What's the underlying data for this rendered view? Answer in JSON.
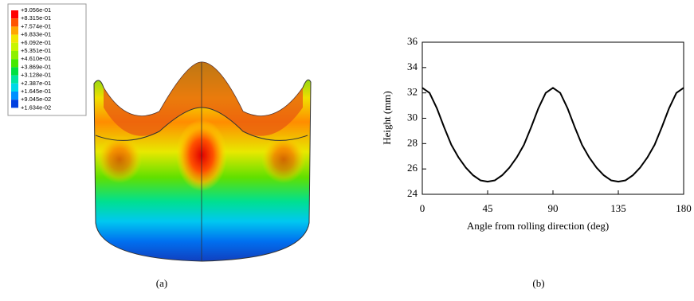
{
  "chart_data": [
    {
      "type": "contour",
      "caption": "(a)",
      "levels": [
        {
          "value": 0.9056,
          "label": "+9.056e-01"
        },
        {
          "value": 0.8315,
          "label": "+8.315e-01"
        },
        {
          "value": 0.7574,
          "label": "+7.574e-01"
        },
        {
          "value": 0.6833,
          "label": "+6.833e-01"
        },
        {
          "value": 0.6092,
          "label": "+6.092e-01"
        },
        {
          "value": 0.5351,
          "label": "+5.351e-01"
        },
        {
          "value": 0.461,
          "label": "+4.610e-01"
        },
        {
          "value": 0.3869,
          "label": "+3.869e-01"
        },
        {
          "value": 0.3128,
          "label": "+3.128e-01"
        },
        {
          "value": 0.2387,
          "label": "+2.387e-01"
        },
        {
          "value": 0.1645,
          "label": "+1.645e-01"
        },
        {
          "value": 0.09045,
          "label": "+9.045e-02"
        },
        {
          "value": 0.01634,
          "label": "+1.634e-02"
        }
      ],
      "colors": [
        "#ff0000",
        "#ff5400",
        "#ffa600",
        "#f2e600",
        "#c8f500",
        "#8ef000",
        "#44e800",
        "#00e040",
        "#00e4a0",
        "#00d8e8",
        "#0090ff",
        "#0040e0"
      ]
    },
    {
      "type": "line",
      "caption": "(b)",
      "x_label": "Angle from rolling direction (deg)",
      "y_label": "Height (mm)",
      "color": "#000000",
      "x": [
        0,
        5,
        10,
        15,
        20,
        25,
        30,
        35,
        40,
        45,
        50,
        55,
        60,
        65,
        70,
        75,
        80,
        85,
        90,
        95,
        100,
        105,
        110,
        115,
        120,
        125,
        130,
        135,
        140,
        145,
        150,
        155,
        160,
        165,
        170,
        175,
        180
      ],
      "values": [
        32.4,
        32.0,
        30.8,
        29.3,
        27.9,
        26.9,
        26.1,
        25.5,
        25.1,
        25.0,
        25.1,
        25.5,
        26.1,
        26.9,
        27.9,
        29.3,
        30.8,
        32.0,
        32.4,
        32.0,
        30.8,
        29.3,
        27.9,
        26.9,
        26.1,
        25.5,
        25.1,
        25.0,
        25.1,
        25.5,
        26.1,
        26.9,
        27.9,
        29.3,
        30.8,
        32.0,
        32.4
      ],
      "xlim": [
        0,
        180
      ],
      "xticks": [
        0,
        45,
        90,
        135,
        180
      ],
      "ylim": [
        24,
        36
      ],
      "yticks": [
        24,
        26,
        28,
        30,
        32,
        34,
        36
      ]
    }
  ]
}
